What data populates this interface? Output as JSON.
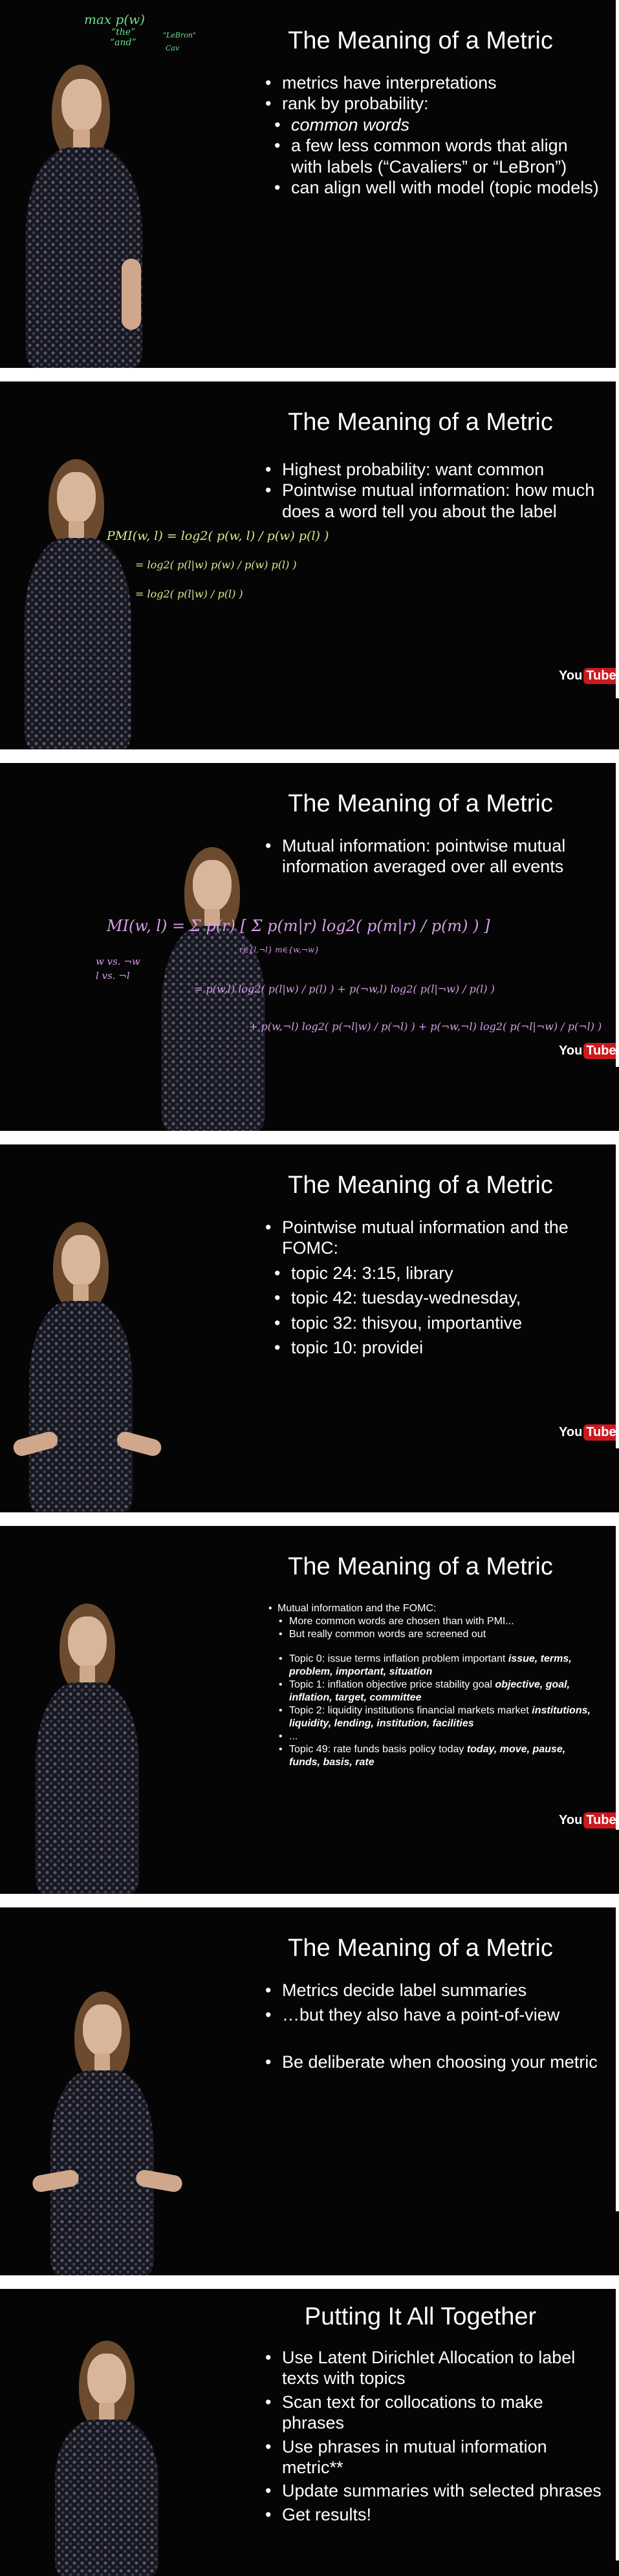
{
  "brand": {
    "you": "You",
    "tube": "Tube"
  },
  "slides": [
    {
      "title": "The Meaning of a Metric",
      "bullets": [
        "metrics have interpretations",
        "rank by probability:"
      ],
      "sub_bullets": [
        "common words",
        "a few less common words that align with labels (“Cavaliers” or “LeBron”)",
        "can align well with model (topic models)"
      ],
      "handwriting": [
        "max p(w)",
        "“the”",
        "“and”",
        "\"LeBron\"",
        "Cav"
      ]
    },
    {
      "title": "The Meaning of a Metric",
      "bullets": [
        "Highest probability: want common",
        "Pointwise mutual information: how much does a word tell you about the label"
      ],
      "handwriting": [
        "PMI(w, l) = log2( p(w, l) / p(w) p(l) )",
        "= log2( p(l|w) p(w) / p(w) p(l) )",
        "= log2( p(l|w) / p(l) )"
      ]
    },
    {
      "title": "The Meaning of a Metric",
      "bullets": [
        "Mutual information: pointwise mutual information averaged over all events"
      ],
      "handwriting": [
        "MI(w, l) = Σ p(r) [ Σ p(m|r) log2( p(m|r) / p(m) ) ]",
        "r∈{l,¬l}   m∈{w,¬w}",
        "w vs. ¬w",
        "l vs. ¬l",
        "= p(w,l) log2( p(l|w) / p(l) ) + p(¬w,l) log2( p(l|¬w) / p(l) )",
        "+ p(w,¬l) log2( p(¬l|w) / p(¬l) ) + p(¬w,¬l) log2( p(¬l|¬w) / p(¬l) )"
      ]
    },
    {
      "title": "The Meaning of a Metric",
      "bullets": [
        "Pointwise mutual information and the FOMC:"
      ],
      "sub_bullets": [
        "topic 24: 3:15, library",
        "topic 42: tuesday-wednesday,",
        "topic 32: thisyou, importantive",
        "topic 10: providei"
      ]
    },
    {
      "title": "The Meaning of a Metric",
      "bullets": [
        "Mutual information and the FOMC:"
      ],
      "sub_bullets": [
        "More common words are chosen than with PMI...",
        "But really common words are screened out"
      ],
      "topics": [
        {
          "plain": "Topic 0: issue terms inflation problem important",
          "bold": "issue, terms, problem, important, situation"
        },
        {
          "plain": "Topic 1: inflation objective price stability goal",
          "bold": "objective, goal, inflation, target, committee"
        },
        {
          "plain": "Topic 2: liquidity institutions financial markets market",
          "bold": "institutions, liquidity, lending, institution, facilities"
        },
        {
          "plain": "...",
          "bold": ""
        },
        {
          "plain": "Topic 49: rate funds basis policy today",
          "bold": "today, move, pause, funds, basis, rate"
        }
      ]
    },
    {
      "title": "The Meaning of a Metric",
      "bullets": [
        "Metrics decide label summaries",
        "…but they also have a point-of-view",
        "Be deliberate when choosing your metric"
      ]
    },
    {
      "title": "Putting It All Together",
      "bullets": [
        "Use Latent Dirichlet Allocation to label texts with topics",
        "Scan text for collocations to make phrases",
        "Use phrases in mutual information metric**",
        "Update summaries with selected phrases",
        "Get results!"
      ]
    }
  ]
}
